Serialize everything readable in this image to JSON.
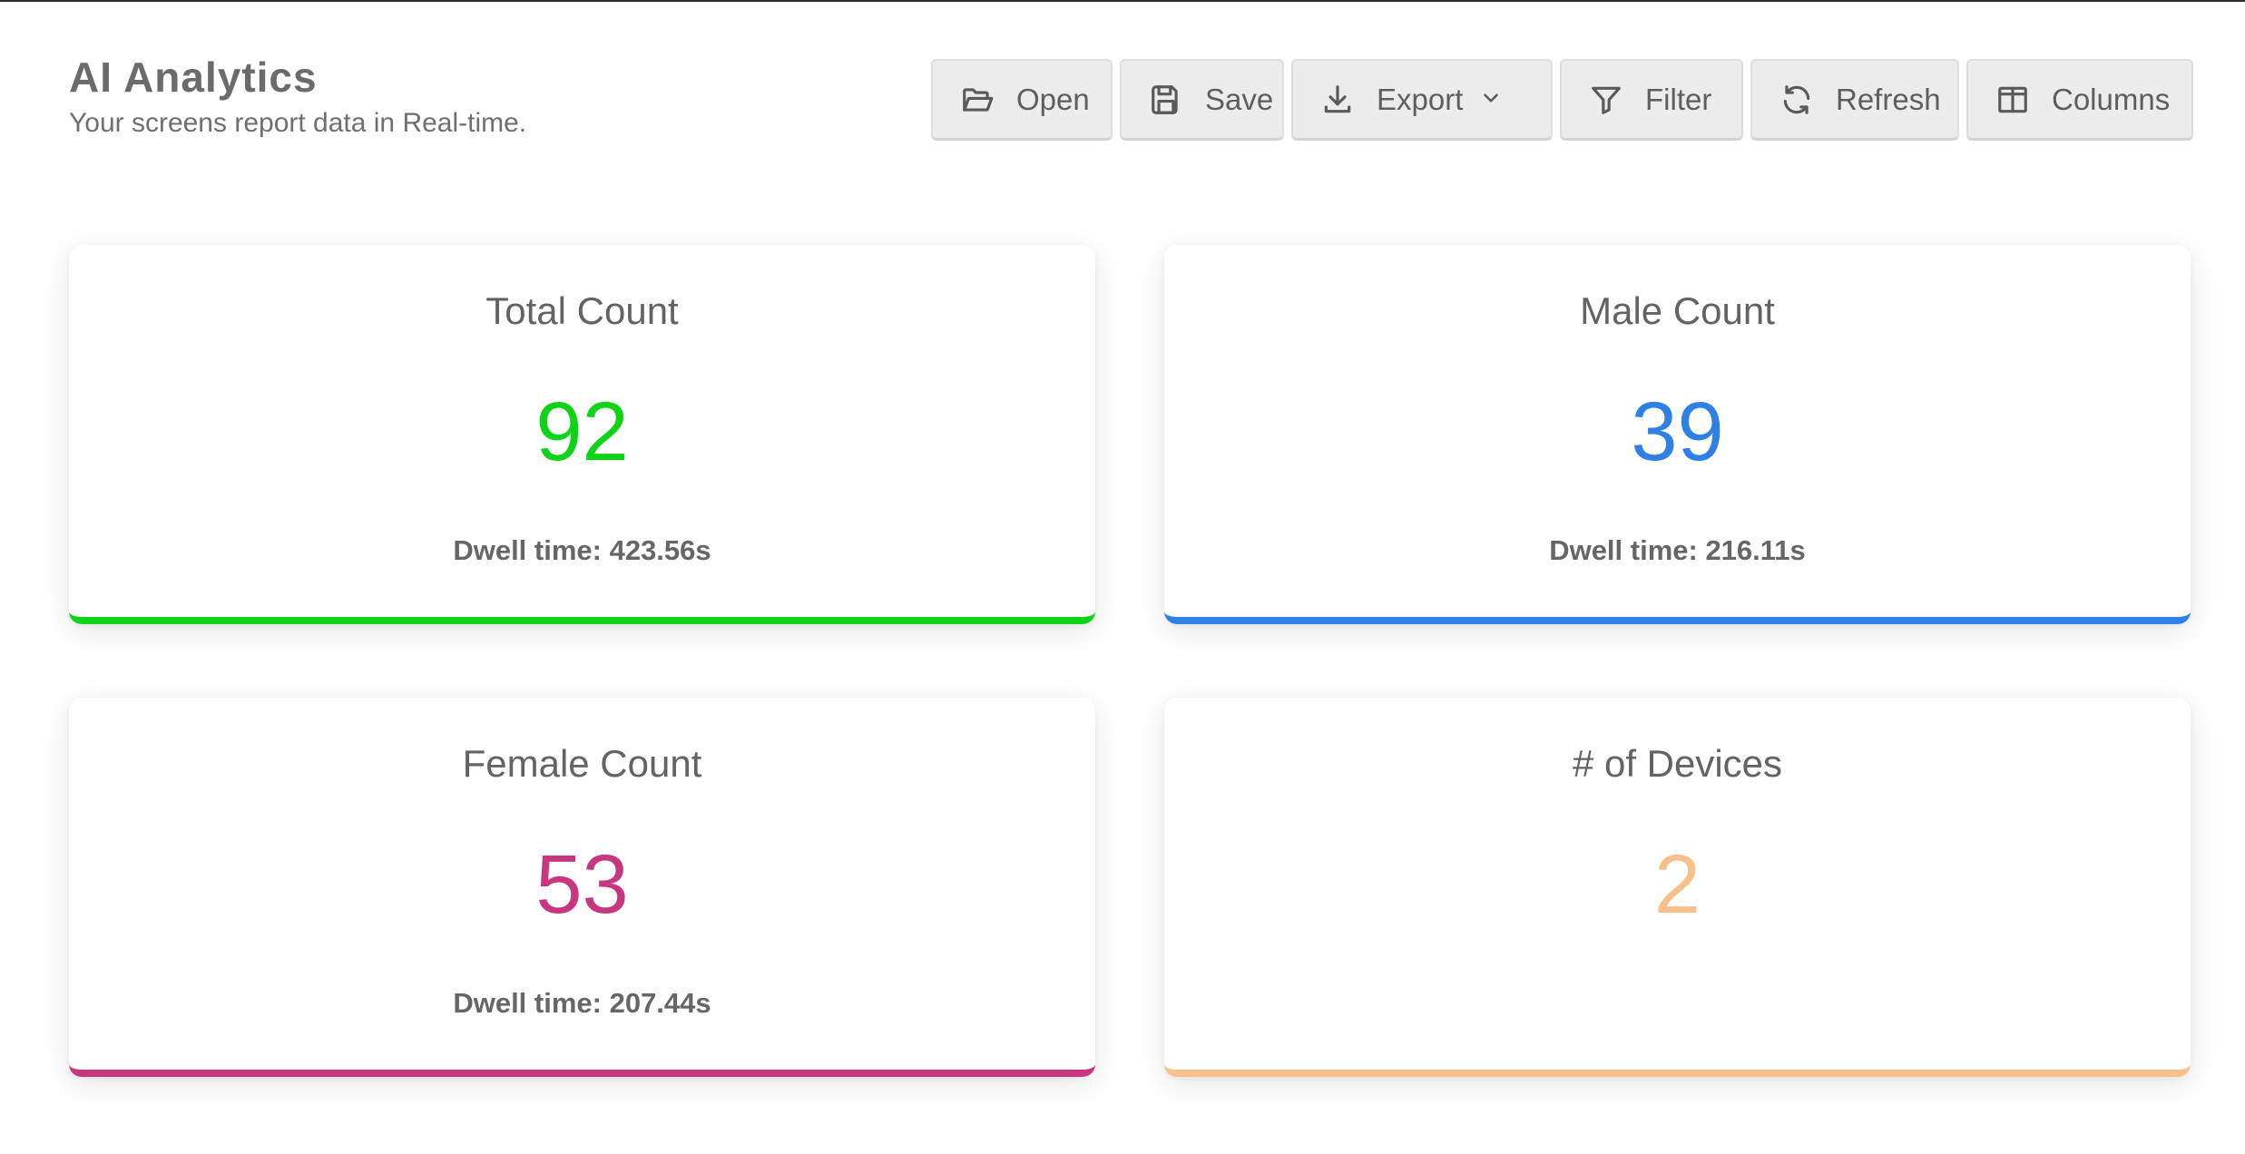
{
  "header": {
    "title": "AI Analytics",
    "subtitle": "Your screens report data in Real-time."
  },
  "toolbar": {
    "open": {
      "label": "Open",
      "icon": "folder-open-icon"
    },
    "save": {
      "label": "Save",
      "icon": "save-icon"
    },
    "export": {
      "label": "Export",
      "icon": "download-icon"
    },
    "filter": {
      "label": "Filter",
      "icon": "filter-icon"
    },
    "refresh": {
      "label": "Refresh",
      "icon": "refresh-icon"
    },
    "columns": {
      "label": "Columns",
      "icon": "columns-icon"
    }
  },
  "cards": {
    "total": {
      "title": "Total Count",
      "value": "92",
      "dwell": "Dwell time: 423.56s",
      "color": "#0fd317"
    },
    "male": {
      "title": "Male Count",
      "value": "39",
      "dwell": "Dwell time: 216.11s",
      "color": "#2f80e4"
    },
    "female": {
      "title": "Female Count",
      "value": "53",
      "dwell": "Dwell time: 207.44s",
      "color": "#c8367f"
    },
    "devices": {
      "title": "# of Devices",
      "value": "2",
      "color": "#f8c08b"
    }
  }
}
